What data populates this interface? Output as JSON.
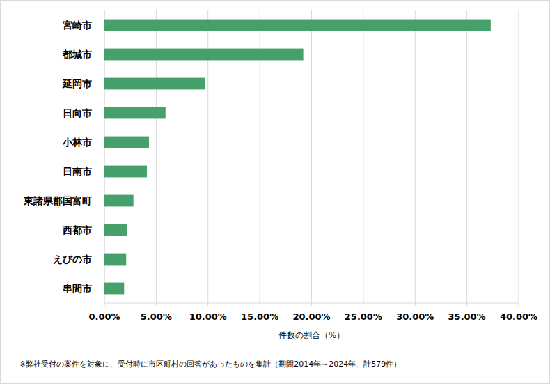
{
  "chart_data": {
    "type": "bar",
    "orientation": "horizontal",
    "categories": [
      "宮崎市",
      "都城市",
      "延岡市",
      "日向市",
      "小林市",
      "日南市",
      "東諸県郡国富町",
      "西都市",
      "えびの市",
      "串間市"
    ],
    "values": [
      37.3,
      19.2,
      9.7,
      5.9,
      4.3,
      4.1,
      2.8,
      2.2,
      2.1,
      1.9
    ],
    "color": "#45a06c",
    "x_label": "件数の割合（%）",
    "xlim": [
      0,
      40
    ],
    "xticks": [
      {
        "value": 0,
        "label": "0.00%"
      },
      {
        "value": 5,
        "label": "5.00%"
      },
      {
        "value": 10,
        "label": "10.00%"
      },
      {
        "value": 15,
        "label": "15.00%"
      },
      {
        "value": 20,
        "label": "20.00%"
      },
      {
        "value": 25,
        "label": "25.00%"
      },
      {
        "value": 30,
        "label": "30.00%"
      },
      {
        "value": 35,
        "label": "35.00%"
      },
      {
        "value": 40,
        "label": "40.00%"
      }
    ],
    "grid": true,
    "annotations": [
      "※弊社受付の案件を対象に、受付時に市区町村の回答があったものを集計（期間2014年～2024年、計579件）"
    ]
  }
}
